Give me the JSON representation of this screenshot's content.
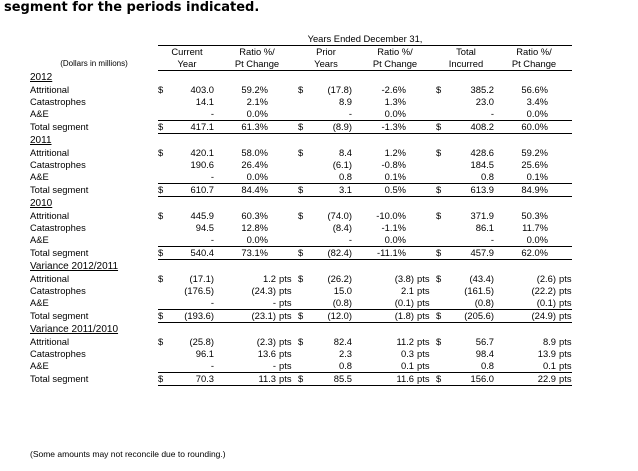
{
  "intro": "segment for the periods indicated.",
  "header": {
    "years_ended": "Years Ended December 31,",
    "units": "(Dollars in millions)",
    "col1": [
      "Current",
      "Year"
    ],
    "col2": [
      "Ratio %/",
      "Pt Change"
    ],
    "col3": [
      "Prior",
      "Years"
    ],
    "col4": [
      "Ratio %/",
      "Pt Change"
    ],
    "col5": [
      "Total",
      "Incurred"
    ],
    "col6": [
      "Ratio %/",
      "Pt Change"
    ]
  },
  "currency": "$",
  "pts": "pts",
  "sections": [
    {
      "title": "2012",
      "rows": [
        {
          "label": "Attritional",
          "cy": "403.0",
          "cyr": "59.2%",
          "py": "(17.8)",
          "pyr": "-2.6%",
          "ti": "385.2",
          "tir": "56.6%"
        },
        {
          "label": "Catastrophes",
          "cy": "14.1",
          "cyr": "2.1%",
          "py": "8.9",
          "pyr": "1.3%",
          "ti": "23.0",
          "tir": "3.4%"
        },
        {
          "label": "A&E",
          "cy": "-",
          "cyr": "0.0%",
          "py": "-",
          "pyr": "0.0%",
          "ti": "-",
          "tir": "0.0%"
        },
        {
          "label": "Total segment",
          "cy": "417.1",
          "cyr": "61.3%",
          "py": "(8.9)",
          "pyr": "-1.3%",
          "ti": "408.2",
          "tir": "60.0%"
        }
      ]
    },
    {
      "title": "2011",
      "rows": [
        {
          "label": "Attritional",
          "cy": "420.1",
          "cyr": "58.0%",
          "py": "8.4",
          "pyr": "1.2%",
          "ti": "428.6",
          "tir": "59.2%"
        },
        {
          "label": "Catastrophes",
          "cy": "190.6",
          "cyr": "26.4%",
          "py": "(6.1)",
          "pyr": "-0.8%",
          "ti": "184.5",
          "tir": "25.6%"
        },
        {
          "label": "A&E",
          "cy": "-",
          "cyr": "0.0%",
          "py": "0.8",
          "pyr": "0.1%",
          "ti": "0.8",
          "tir": "0.1%"
        },
        {
          "label": "Total segment",
          "cy": "610.7",
          "cyr": "84.4%",
          "py": "3.1",
          "pyr": "0.5%",
          "ti": "613.9",
          "tir": "84.9%"
        }
      ]
    },
    {
      "title": "2010",
      "rows": [
        {
          "label": "Attritional",
          "cy": "445.9",
          "cyr": "60.3%",
          "py": "(74.0)",
          "pyr": "-10.0%",
          "ti": "371.9",
          "tir": "50.3%"
        },
        {
          "label": "Catastrophes",
          "cy": "94.5",
          "cyr": "12.8%",
          "py": "(8.4)",
          "pyr": "-1.1%",
          "ti": "86.1",
          "tir": "11.7%"
        },
        {
          "label": "A&E",
          "cy": "-",
          "cyr": "0.0%",
          "py": "-",
          "pyr": "0.0%",
          "ti": "-",
          "tir": "0.0%"
        },
        {
          "label": "Total segment",
          "cy": "540.4",
          "cyr": "73.1%",
          "py": "(82.4)",
          "pyr": "-11.1%",
          "ti": "457.9",
          "tir": "62.0%"
        }
      ]
    },
    {
      "title": "Variance 2012/2011",
      "rows": [
        {
          "label": "Attritional",
          "cy": "(17.1)",
          "cyr": "1.2",
          "py": "(26.2)",
          "pyr": "(3.8)",
          "ti": "(43.4)",
          "tir": "(2.6)"
        },
        {
          "label": "Catastrophes",
          "cy": "(176.5)",
          "cyr": "(24.3)",
          "py": "15.0",
          "pyr": "2.1",
          "ti": "(161.5)",
          "tir": "(22.2)"
        },
        {
          "label": "A&E",
          "cy": "-",
          "cyr": "-",
          "py": "(0.8)",
          "pyr": "(0.1)",
          "ti": "(0.8)",
          "tir": "(0.1)"
        },
        {
          "label": "Total segment",
          "cy": "(193.6)",
          "cyr": "(23.1)",
          "py": "(12.0)",
          "pyr": "(1.8)",
          "ti": "(205.6)",
          "tir": "(24.9)"
        }
      ]
    },
    {
      "title": "Variance 2011/2010",
      "rows": [
        {
          "label": "Attritional",
          "cy": "(25.8)",
          "cyr": "(2.3)",
          "py": "82.4",
          "pyr": "11.2",
          "ti": "56.7",
          "tir": "8.9"
        },
        {
          "label": "Catastrophes",
          "cy": "96.1",
          "cyr": "13.6",
          "py": "2.3",
          "pyr": "0.3",
          "ti": "98.4",
          "tir": "13.9"
        },
        {
          "label": "A&E",
          "cy": "-",
          "cyr": "-",
          "py": "0.8",
          "pyr": "0.1",
          "ti": "0.8",
          "tir": "0.1"
        },
        {
          "label": "Total segment",
          "cy": "70.3",
          "cyr": "11.3",
          "py": "85.5",
          "pyr": "11.6",
          "ti": "156.0",
          "tir": "22.9"
        }
      ]
    }
  ],
  "note": "(Some amounts may not reconcile due to rounding.)"
}
